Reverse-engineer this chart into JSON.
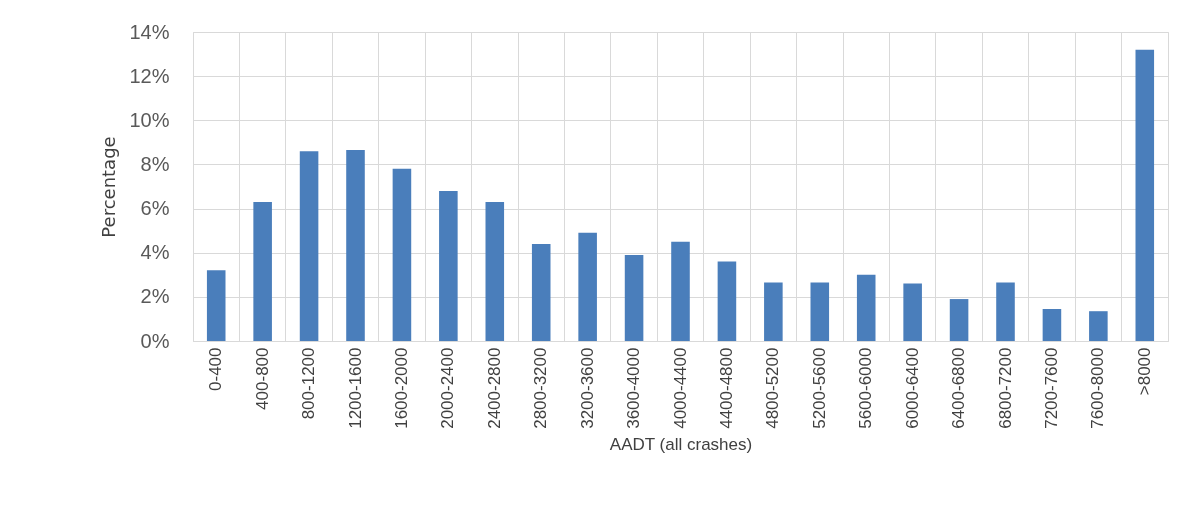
{
  "chart_data": {
    "type": "bar",
    "xlabel": "AADT (all crashes)",
    "ylabel": "Percentage",
    "categories": [
      "0-400",
      "400-800",
      "800-1200",
      "1200-1600",
      "1600-2000",
      "2000-2400",
      "2400-2800",
      "2800-3200",
      "3200-3600",
      "3600-4000",
      "4000-4400",
      "4400-4800",
      "4800-5200",
      "5200-5600",
      "5600-6000",
      "6000-6400",
      "6400-6800",
      "6800-7200",
      "7200-7600",
      "7600-8000",
      ">8000"
    ],
    "values": [
      3.2,
      6.3,
      8.6,
      8.65,
      7.8,
      6.8,
      6.3,
      4.4,
      4.9,
      3.9,
      4.5,
      3.6,
      2.65,
      2.65,
      3.0,
      2.6,
      1.9,
      2.65,
      1.45,
      1.35,
      13.2
    ],
    "color": "#4a7ebb",
    "ylim": [
      0,
      14
    ],
    "yticks": [
      {
        "value": 0,
        "label": "0%"
      },
      {
        "value": 2,
        "label": "2%"
      },
      {
        "value": 4,
        "label": "4%"
      },
      {
        "value": 6,
        "label": "6%"
      },
      {
        "value": 8,
        "label": "8%"
      },
      {
        "value": 10,
        "label": "10%"
      },
      {
        "value": 12,
        "label": "12%"
      },
      {
        "value": 14,
        "label": "14%"
      }
    ],
    "grid": true
  }
}
